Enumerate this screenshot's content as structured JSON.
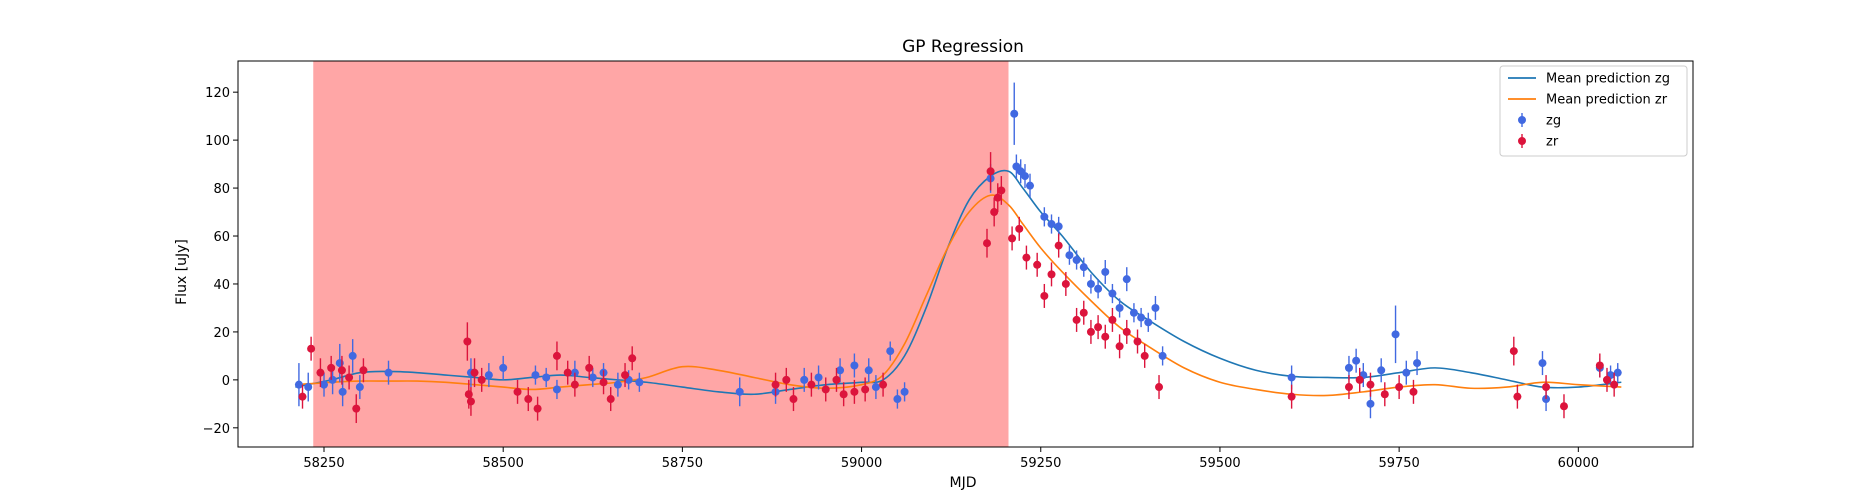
{
  "chart_data": {
    "type": "scatter",
    "title": "GP Regression",
    "xlabel": "MJD",
    "ylabel": "Flux [uJy]",
    "xlim": [
      58130,
      60160
    ],
    "ylim": [
      -28,
      133
    ],
    "xticks": [
      58250,
      58500,
      58750,
      59000,
      59250,
      59500,
      59750,
      60000
    ],
    "yticks": [
      -20,
      0,
      20,
      40,
      60,
      80,
      100,
      120
    ],
    "grid": false,
    "legend_position": "top-right",
    "shaded_region": {
      "x_start": 58235,
      "x_end": 59205,
      "color": "#ff0000",
      "alpha": 0.35
    },
    "lines": [
      {
        "name": "Mean prediction zg",
        "color": "#1f77b4",
        "x": [
          58210,
          58260,
          58300,
          58340,
          58380,
          58420,
          58460,
          58500,
          58540,
          58580,
          58620,
          58660,
          58700,
          58750,
          58800,
          58850,
          58900,
          58950,
          59000,
          59030,
          59060,
          59090,
          59120,
          59150,
          59180,
          59205,
          59225,
          59250,
          59280,
          59320,
          59360,
          59400,
          59450,
          59500,
          59550,
          59600,
          59650,
          59700,
          59750,
          59800,
          59850,
          59900,
          59950,
          60000,
          60060
        ],
        "y": [
          -3,
          0,
          3,
          3.5,
          3,
          2,
          1,
          0,
          1,
          2,
          1,
          0,
          -1,
          -3,
          -5,
          -6,
          -4,
          -2,
          -1,
          0,
          10,
          30,
          55,
          75,
          85,
          87,
          80,
          70,
          60,
          45,
          33,
          25,
          16,
          9,
          4,
          1.5,
          1,
          1,
          3,
          5,
          3,
          0,
          -3,
          -3,
          -1
        ]
      },
      {
        "name": "Mean prediction zr",
        "color": "#ff7f0e",
        "x": [
          58210,
          58260,
          58300,
          58340,
          58380,
          58420,
          58460,
          58500,
          58540,
          58580,
          58620,
          58660,
          58700,
          58750,
          58800,
          58850,
          58900,
          58950,
          59000,
          59030,
          59060,
          59090,
          59120,
          59150,
          59180,
          59205,
          59225,
          59250,
          59280,
          59320,
          59360,
          59400,
          59450,
          59500,
          59550,
          59600,
          59650,
          59700,
          59750,
          59800,
          59850,
          59900,
          59950,
          60000,
          60060
        ],
        "y": [
          -2,
          -1,
          -0.5,
          -0.5,
          -0.5,
          -1,
          -2,
          -3,
          -4,
          -3,
          -2,
          -1,
          1,
          5.5,
          4,
          1,
          -2,
          -3.5,
          -2,
          2,
          15,
          35,
          55,
          70,
          77,
          73,
          65,
          55,
          45,
          33,
          22,
          14,
          5,
          -1,
          -4,
          -6,
          -6.5,
          -5,
          -3,
          -2,
          -3.5,
          -3,
          -1,
          -2,
          -3
        ]
      }
    ],
    "series": [
      {
        "name": "zg",
        "color": "#4169e1",
        "points": [
          [
            58215,
            -2,
            9
          ],
          [
            58228,
            -3,
            6
          ],
          [
            58250,
            -2,
            5
          ],
          [
            58262,
            0,
            6
          ],
          [
            58272,
            7,
            8
          ],
          [
            58276,
            -5,
            6
          ],
          [
            58290,
            10,
            7
          ],
          [
            58300,
            -3,
            5
          ],
          [
            58340,
            3,
            5
          ],
          [
            58455,
            3,
            6
          ],
          [
            58480,
            2,
            5
          ],
          [
            58500,
            5,
            5
          ],
          [
            58545,
            2,
            4
          ],
          [
            58560,
            1,
            4
          ],
          [
            58575,
            -4,
            4
          ],
          [
            58600,
            3,
            5
          ],
          [
            58625,
            1,
            4
          ],
          [
            58640,
            3,
            4
          ],
          [
            58660,
            -2,
            5
          ],
          [
            58675,
            0,
            4
          ],
          [
            58690,
            -1,
            4
          ],
          [
            58830,
            -5,
            6
          ],
          [
            58880,
            -5,
            5
          ],
          [
            58920,
            0,
            5
          ],
          [
            58940,
            1,
            5
          ],
          [
            58970,
            4,
            5
          ],
          [
            58990,
            6,
            5
          ],
          [
            59010,
            4,
            5
          ],
          [
            59020,
            -3,
            5
          ],
          [
            59040,
            12,
            4
          ],
          [
            59050,
            -8,
            4
          ],
          [
            59060,
            -5,
            4
          ],
          [
            59180,
            84,
            6
          ],
          [
            59213,
            111,
            13
          ],
          [
            59216,
            89,
            5
          ],
          [
            59222,
            87,
            5
          ],
          [
            59228,
            85,
            5
          ],
          [
            59235,
            81,
            5
          ],
          [
            59255,
            68,
            4
          ],
          [
            59265,
            65,
            4
          ],
          [
            59275,
            64,
            4
          ],
          [
            59290,
            52,
            4
          ],
          [
            59300,
            50,
            4
          ],
          [
            59310,
            47,
            4
          ],
          [
            59320,
            40,
            4
          ],
          [
            59330,
            38,
            4
          ],
          [
            59340,
            45,
            5
          ],
          [
            59350,
            36,
            4
          ],
          [
            59360,
            30,
            4
          ],
          [
            59370,
            42,
            5
          ],
          [
            59380,
            28,
            4
          ],
          [
            59390,
            26,
            4
          ],
          [
            59400,
            24,
            4
          ],
          [
            59410,
            30,
            5
          ],
          [
            59420,
            10,
            4
          ],
          [
            59600,
            1,
            5
          ],
          [
            59680,
            5,
            5
          ],
          [
            59690,
            8,
            5
          ],
          [
            59700,
            2,
            5
          ],
          [
            59710,
            -10,
            6
          ],
          [
            59725,
            4,
            5
          ],
          [
            59745,
            19,
            12
          ],
          [
            59760,
            3,
            5
          ],
          [
            59775,
            7,
            5
          ],
          [
            59950,
            7,
            5
          ],
          [
            59955,
            -8,
            5
          ],
          [
            60030,
            5,
            4
          ],
          [
            60045,
            2,
            4
          ],
          [
            60055,
            3,
            4
          ]
        ]
      },
      {
        "name": "zr",
        "color": "#dc143c",
        "points": [
          [
            58220,
            -7,
            5
          ],
          [
            58232,
            13,
            5
          ],
          [
            58245,
            3,
            6
          ],
          [
            58260,
            5,
            5
          ],
          [
            58275,
            4,
            6
          ],
          [
            58285,
            1,
            5
          ],
          [
            58295,
            -12,
            6
          ],
          [
            58305,
            4,
            5
          ],
          [
            58450,
            16,
            8
          ],
          [
            58452,
            -6,
            6
          ],
          [
            58455,
            -9,
            6
          ],
          [
            58460,
            3,
            6
          ],
          [
            58470,
            0,
            5
          ],
          [
            58520,
            -5,
            5
          ],
          [
            58535,
            -8,
            5
          ],
          [
            58548,
            -12,
            5
          ],
          [
            58575,
            10,
            6
          ],
          [
            58590,
            3,
            5
          ],
          [
            58600,
            -2,
            5
          ],
          [
            58620,
            5,
            5
          ],
          [
            58640,
            -1,
            5
          ],
          [
            58650,
            -8,
            5
          ],
          [
            58670,
            2,
            5
          ],
          [
            58680,
            9,
            5
          ],
          [
            58880,
            -2,
            5
          ],
          [
            58895,
            0,
            5
          ],
          [
            58905,
            -8,
            5
          ],
          [
            58930,
            -2,
            5
          ],
          [
            58950,
            -4,
            5
          ],
          [
            58965,
            0,
            5
          ],
          [
            58975,
            -6,
            5
          ],
          [
            58990,
            -5,
            5
          ],
          [
            59005,
            -4,
            5
          ],
          [
            59030,
            -2,
            5
          ],
          [
            59175,
            57,
            6
          ],
          [
            59180,
            87,
            8
          ],
          [
            59185,
            70,
            6
          ],
          [
            59190,
            76,
            6
          ],
          [
            59195,
            79,
            6
          ],
          [
            59210,
            59,
            5
          ],
          [
            59220,
            63,
            5
          ],
          [
            59230,
            51,
            5
          ],
          [
            59245,
            48,
            5
          ],
          [
            59255,
            35,
            5
          ],
          [
            59265,
            44,
            5
          ],
          [
            59275,
            56,
            5
          ],
          [
            59285,
            40,
            5
          ],
          [
            59300,
            25,
            5
          ],
          [
            59310,
            28,
            5
          ],
          [
            59320,
            20,
            5
          ],
          [
            59330,
            22,
            5
          ],
          [
            59340,
            18,
            5
          ],
          [
            59350,
            25,
            5
          ],
          [
            59360,
            14,
            5
          ],
          [
            59370,
            20,
            5
          ],
          [
            59385,
            16,
            5
          ],
          [
            59395,
            10,
            5
          ],
          [
            59415,
            -3,
            5
          ],
          [
            59600,
            -7,
            5
          ],
          [
            59680,
            -3,
            5
          ],
          [
            59695,
            0,
            5
          ],
          [
            59710,
            -2,
            5
          ],
          [
            59730,
            -6,
            5
          ],
          [
            59750,
            -3,
            5
          ],
          [
            59770,
            -5,
            5
          ],
          [
            59910,
            12,
            6
          ],
          [
            59915,
            -7,
            5
          ],
          [
            59955,
            -3,
            5
          ],
          [
            59980,
            -11,
            5
          ],
          [
            60030,
            6,
            5
          ],
          [
            60040,
            0,
            5
          ],
          [
            60050,
            -2,
            5
          ]
        ]
      }
    ],
    "legend": [
      {
        "label": "Mean prediction zg",
        "kind": "line",
        "color": "#1f77b4"
      },
      {
        "label": "Mean prediction zr",
        "kind": "line",
        "color": "#ff7f0e"
      },
      {
        "label": "zg",
        "kind": "marker",
        "color": "#4169e1"
      },
      {
        "label": "zr",
        "kind": "marker",
        "color": "#dc143c"
      }
    ]
  }
}
